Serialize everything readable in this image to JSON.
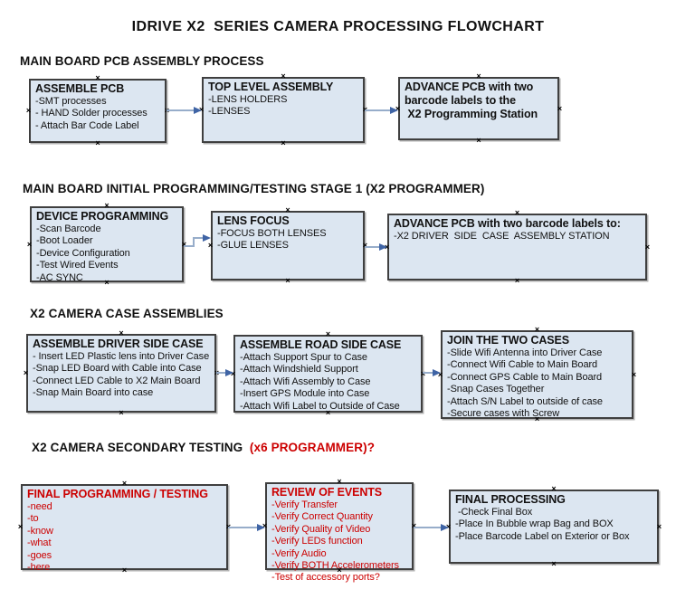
{
  "title": "IDRIVE X2  SERIES CAMERA PROCESSING FLOWCHART",
  "icons": {
    "connection_point": "×"
  },
  "colors": {
    "box_fill": "#dce6f1",
    "box_border": "#3f3f3f",
    "connector_line": "#97adca",
    "arrowhead": "#3f64a5",
    "red_text": "#cc0000",
    "black_text": "#111111",
    "background": "#ffffff"
  },
  "sections": [
    {
      "heading": "MAIN BOARD PCB ASSEMBLY PROCESS",
      "boxes": [
        {
          "title": "ASSEMBLE PCB",
          "items": [
            "-SMT processes",
            "- HAND Solder processes",
            "- Attach Bar Code Label"
          ]
        },
        {
          "title": "TOP LEVEL ASSEMBLY",
          "items": [
            "-LENS HOLDERS",
            "-LENSES"
          ]
        },
        {
          "title_lines": [
            "ADVANCE PCB with two",
            "barcode labels to the",
            " X2 Programming Station"
          ]
        }
      ]
    },
    {
      "heading": "MAIN BOARD INITIAL PROGRAMMING/TESTING STAGE 1 (X2 PROGRAMMER)",
      "boxes": [
        {
          "title": "DEVICE PROGRAMMING",
          "items": [
            "-Scan Barcode",
            "-Boot Loader",
            "-Device Configuration",
            "-Test Wired Events",
            "-AC SYNC"
          ]
        },
        {
          "title": "LENS FOCUS",
          "items": [
            "-FOCUS BOTH LENSES",
            "-GLUE LENSES"
          ]
        },
        {
          "title": "ADVANCE PCB with two barcode labels to:",
          "items": [
            "-X2 DRIVER  SIDE  CASE  ASSEMBLY STATION"
          ]
        }
      ]
    },
    {
      "heading": "X2 CAMERA CASE ASSEMBLIES",
      "boxes": [
        {
          "title": "ASSEMBLE DRIVER SIDE CASE",
          "items": [
            "- Insert LED Plastic lens into Driver Case",
            "-Snap LED Board with Cable into Case",
            "-Connect LED Cable to X2 Main Board",
            "-Snap Main Board into case"
          ]
        },
        {
          "title": "ASSEMBLE ROAD SIDE CASE",
          "items": [
            "-Attach Support Spur to Case",
            "-Attach Windshield Support",
            "-Attach Wifi Assembly to Case",
            "-Insert GPS Module into Case",
            "-Attach Wifi Label to Outside of Case"
          ]
        },
        {
          "title": "JOIN THE TWO CASES",
          "items": [
            "-Slide Wifi Antenna into Driver Case",
            "-Connect Wifi Cable to Main Board",
            "-Connect GPS Cable to Main Board",
            "-Snap Cases Together",
            "-Attach S/N Label to outside of case",
            "-Secure cases with Screw"
          ]
        }
      ]
    },
    {
      "heading": "X2 CAMERA SECONDARY TESTING",
      "heading_red": "  (x6 PROGRAMMER)?",
      "boxes": [
        {
          "title": "FINAL PROGRAMMING / TESTING",
          "items": [
            "-need",
            "-to",
            "-know",
            "-what",
            "-goes",
            "-here"
          ]
        },
        {
          "title": "REVIEW OF EVENTS",
          "items": [
            "-Verify Transfer",
            "-Verify Correct Quantity",
            "-Verify Quality of Video",
            "-Verify LEDs function",
            "-Verify Audio",
            "-Verify BOTH Accelerometers",
            "-Test of accessory ports?"
          ]
        },
        {
          "title": "FINAL PROCESSING",
          "items": [
            " -Check Final Box",
            "-Place In Bubble wrap Bag and BOX",
            "-Place Barcode Label on Exterior or Box"
          ]
        }
      ]
    }
  ]
}
